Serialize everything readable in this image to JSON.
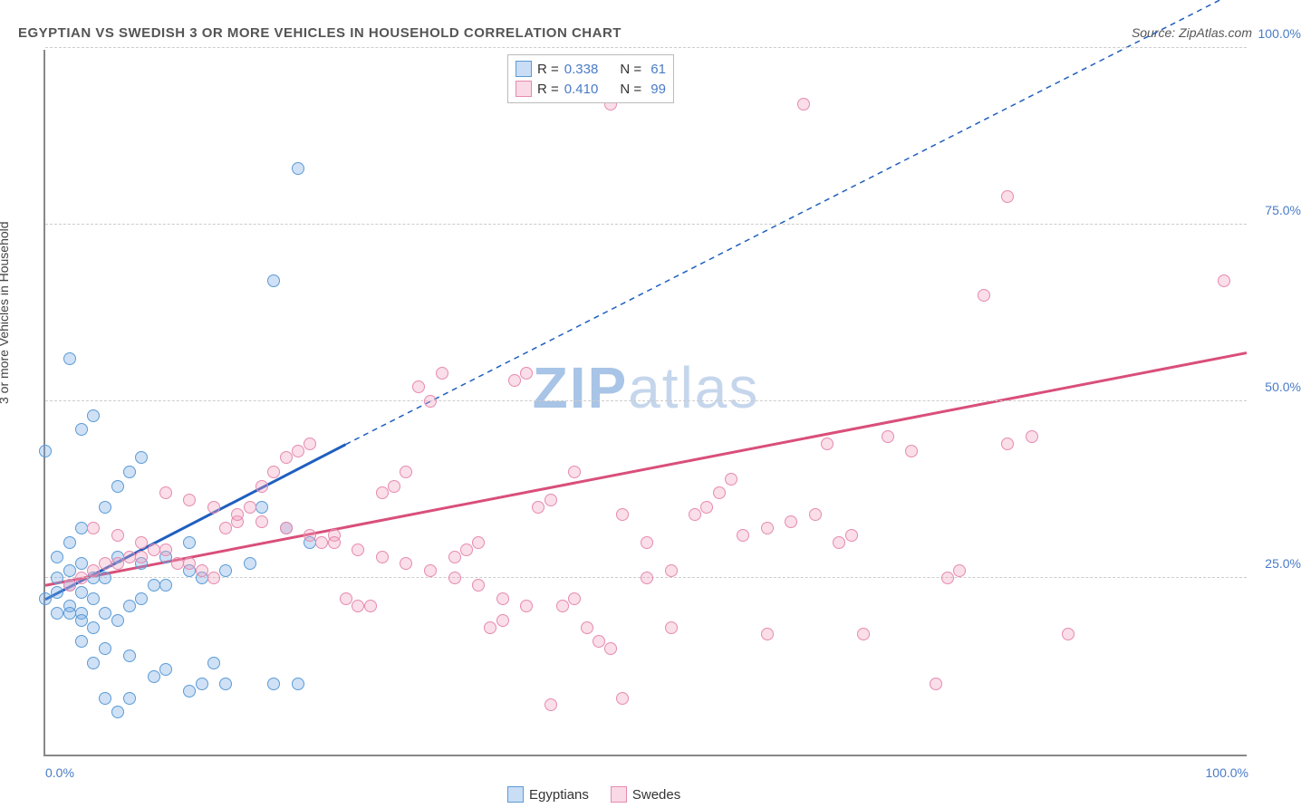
{
  "title": "EGYPTIAN VS SWEDISH 3 OR MORE VEHICLES IN HOUSEHOLD CORRELATION CHART",
  "source": "Source: ZipAtlas.com",
  "ylabel": "3 or more Vehicles in Household",
  "watermark": {
    "zip": "ZIP",
    "atlas": "atlas"
  },
  "chart": {
    "type": "scatter",
    "xlim": [
      0,
      100
    ],
    "ylim": [
      0,
      100
    ],
    "background_color": "#ffffff",
    "grid_color": "#cccccc",
    "axis_color": "#888888",
    "tick_color": "#4a7bc7",
    "label_color": "#444444",
    "title_color": "#555555",
    "title_fontsize": 15,
    "tick_fontsize": 14,
    "label_fontsize": 14,
    "marker_size": 14,
    "yticks": [
      {
        "v": 25,
        "label": "25.0%"
      },
      {
        "v": 50,
        "label": "50.0%"
      },
      {
        "v": 75,
        "label": "75.0%"
      },
      {
        "v": 100,
        "label": "100.0%"
      }
    ],
    "xticks": [
      {
        "v": 0,
        "label": "0.0%"
      },
      {
        "v": 100,
        "label": "100.0%"
      }
    ],
    "series": [
      {
        "name": "Egyptians",
        "R": "0.338",
        "N": "61",
        "color_fill": "rgba(120,170,230,0.35)",
        "color_stroke": "#5a9bd5",
        "trend_color": "#1f5fbf",
        "trend_width": 3,
        "trend_solid": {
          "x1": 0,
          "y1": 22,
          "x2": 25,
          "y2": 44
        },
        "trend_dash": {
          "x1": 25,
          "y1": 44,
          "x2": 100,
          "y2": 109
        },
        "points": [
          [
            0,
            22
          ],
          [
            1,
            23
          ],
          [
            1,
            25
          ],
          [
            2,
            24
          ],
          [
            2,
            26
          ],
          [
            3,
            27
          ],
          [
            1,
            28
          ],
          [
            2,
            21
          ],
          [
            3,
            23
          ],
          [
            4,
            25
          ],
          [
            1,
            20
          ],
          [
            2,
            20
          ],
          [
            3,
            20
          ],
          [
            4,
            22
          ],
          [
            5,
            25
          ],
          [
            6,
            28
          ],
          [
            2,
            30
          ],
          [
            3,
            32
          ],
          [
            5,
            35
          ],
          [
            6,
            38
          ],
          [
            7,
            40
          ],
          [
            8,
            42
          ],
          [
            3,
            46
          ],
          [
            4,
            48
          ],
          [
            2,
            56
          ],
          [
            0,
            43
          ],
          [
            3,
            19
          ],
          [
            4,
            18
          ],
          [
            5,
            20
          ],
          [
            6,
            19
          ],
          [
            7,
            21
          ],
          [
            3,
            16
          ],
          [
            5,
            15
          ],
          [
            7,
            14
          ],
          [
            10,
            12
          ],
          [
            9,
            11
          ],
          [
            7,
            8
          ],
          [
            12,
            9
          ],
          [
            13,
            10
          ],
          [
            15,
            10
          ],
          [
            19,
            10
          ],
          [
            21,
            10
          ],
          [
            8,
            27
          ],
          [
            10,
            28
          ],
          [
            12,
            26
          ],
          [
            13,
            25
          ],
          [
            15,
            26
          ],
          [
            17,
            27
          ],
          [
            14,
            13
          ],
          [
            18,
            35
          ],
          [
            20,
            32
          ],
          [
            22,
            30
          ],
          [
            4,
            13
          ],
          [
            5,
            8
          ],
          [
            6,
            6
          ],
          [
            21,
            83
          ],
          [
            19,
            67
          ],
          [
            12,
            30
          ],
          [
            10,
            24
          ],
          [
            9,
            24
          ],
          [
            8,
            22
          ]
        ]
      },
      {
        "name": "Swedes",
        "R": "0.410",
        "N": "99",
        "color_fill": "rgba(240,160,190,0.35)",
        "color_stroke": "#e68ab0",
        "trend_color": "#d94f7a",
        "trend_width": 3,
        "trend_solid": {
          "x1": 0,
          "y1": 24,
          "x2": 100,
          "y2": 57
        },
        "trend_dash": null,
        "points": [
          [
            2,
            24
          ],
          [
            3,
            25
          ],
          [
            4,
            26
          ],
          [
            5,
            27
          ],
          [
            6,
            27
          ],
          [
            7,
            28
          ],
          [
            8,
            28
          ],
          [
            9,
            29
          ],
          [
            10,
            29
          ],
          [
            11,
            27
          ],
          [
            12,
            27
          ],
          [
            13,
            26
          ],
          [
            14,
            25
          ],
          [
            15,
            32
          ],
          [
            16,
            33
          ],
          [
            17,
            35
          ],
          [
            18,
            38
          ],
          [
            19,
            40
          ],
          [
            20,
            42
          ],
          [
            21,
            43
          ],
          [
            22,
            44
          ],
          [
            23,
            30
          ],
          [
            24,
            31
          ],
          [
            25,
            22
          ],
          [
            26,
            21
          ],
          [
            27,
            21
          ],
          [
            28,
            37
          ],
          [
            29,
            38
          ],
          [
            30,
            40
          ],
          [
            31,
            52
          ],
          [
            32,
            50
          ],
          [
            33,
            54
          ],
          [
            34,
            28
          ],
          [
            35,
            29
          ],
          [
            36,
            30
          ],
          [
            37,
            18
          ],
          [
            38,
            19
          ],
          [
            39,
            53
          ],
          [
            40,
            54
          ],
          [
            41,
            35
          ],
          [
            42,
            36
          ],
          [
            43,
            21
          ],
          [
            44,
            22
          ],
          [
            45,
            18
          ],
          [
            46,
            16
          ],
          [
            47,
            15
          ],
          [
            42,
            7
          ],
          [
            48,
            8
          ],
          [
            50,
            25
          ],
          [
            52,
            26
          ],
          [
            54,
            34
          ],
          [
            55,
            35
          ],
          [
            56,
            37
          ],
          [
            57,
            39
          ],
          [
            58,
            31
          ],
          [
            60,
            32
          ],
          [
            62,
            33
          ],
          [
            64,
            34
          ],
          [
            47,
            92
          ],
          [
            65,
            44
          ],
          [
            66,
            30
          ],
          [
            67,
            31
          ],
          [
            63,
            92
          ],
          [
            68,
            17
          ],
          [
            70,
            45
          ],
          [
            72,
            43
          ],
          [
            74,
            10
          ],
          [
            75,
            25
          ],
          [
            76,
            26
          ],
          [
            60,
            17
          ],
          [
            78,
            65
          ],
          [
            80,
            44
          ],
          [
            82,
            45
          ],
          [
            80,
            79
          ],
          [
            85,
            17
          ],
          [
            98,
            67
          ],
          [
            48,
            34
          ],
          [
            50,
            30
          ],
          [
            52,
            18
          ],
          [
            44,
            40
          ],
          [
            40,
            21
          ],
          [
            38,
            22
          ],
          [
            36,
            24
          ],
          [
            34,
            25
          ],
          [
            32,
            26
          ],
          [
            30,
            27
          ],
          [
            28,
            28
          ],
          [
            26,
            29
          ],
          [
            24,
            30
          ],
          [
            22,
            31
          ],
          [
            20,
            32
          ],
          [
            18,
            33
          ],
          [
            16,
            34
          ],
          [
            14,
            35
          ],
          [
            12,
            36
          ],
          [
            10,
            37
          ],
          [
            8,
            30
          ],
          [
            6,
            31
          ],
          [
            4,
            32
          ]
        ]
      }
    ]
  },
  "legend_top_labels": {
    "R": "R =",
    "N": "N ="
  },
  "legend_bottom": [
    "Egyptians",
    "Swedes"
  ]
}
